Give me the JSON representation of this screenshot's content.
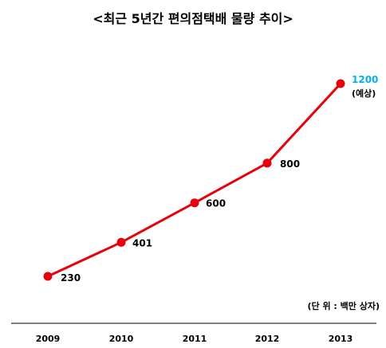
{
  "chart_data": {
    "type": "line",
    "title": "<최근 5년간 편의점택배 물량 추이>",
    "unit_note": "(단 위 : 백만 상자)",
    "categories": [
      "2009",
      "2010",
      "2011",
      "2012",
      "2013"
    ],
    "series": [
      {
        "values": [
          230,
          401,
          600,
          800,
          1200
        ],
        "labels": [
          "230",
          "401",
          "600",
          "800",
          "1200"
        ],
        "color": "#e8000b"
      }
    ],
    "annotations": [
      {
        "category": "2013",
        "text": "(예상)"
      }
    ],
    "highlight_color": "#00b0f0",
    "xlabel": "",
    "ylabel": "",
    "ylim": [
      230,
      1200
    ],
    "grid": false,
    "legend": "none"
  }
}
